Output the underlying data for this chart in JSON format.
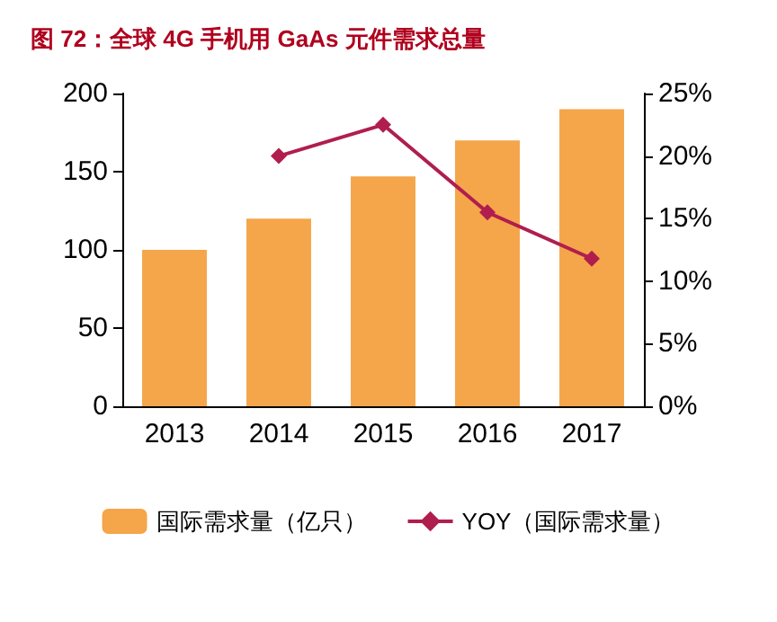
{
  "chart_data": {
    "type": "bar",
    "title": "图 72：全球 4G 手机用 GaAs 元件需求总量",
    "categories": [
      "2013",
      "2014",
      "2015",
      "2016",
      "2017"
    ],
    "series": [
      {
        "name": "国际需求量（亿只）",
        "color": "#f5a54a",
        "values": [
          100,
          120,
          147,
          170,
          190
        ]
      },
      {
        "name": "YOY（国际需求量）",
        "type": "line",
        "axis": "y2",
        "color": "#b01e4e",
        "marker": "diamond",
        "values": [
          null,
          20,
          22.5,
          15.5,
          11.8
        ]
      }
    ],
    "ylim": [
      0,
      200
    ],
    "yticks": [
      0,
      50,
      100,
      150,
      200
    ],
    "y2lim": [
      0,
      25
    ],
    "y2ticks": [
      {
        "value": 0,
        "label": "0%"
      },
      {
        "value": 5,
        "label": "5%"
      },
      {
        "value": 10,
        "label": "10%"
      },
      {
        "value": 15,
        "label": "15%"
      },
      {
        "value": 20,
        "label": "20%"
      },
      {
        "value": 25,
        "label": "25%"
      }
    ],
    "grid": false,
    "legend": "bottom"
  }
}
